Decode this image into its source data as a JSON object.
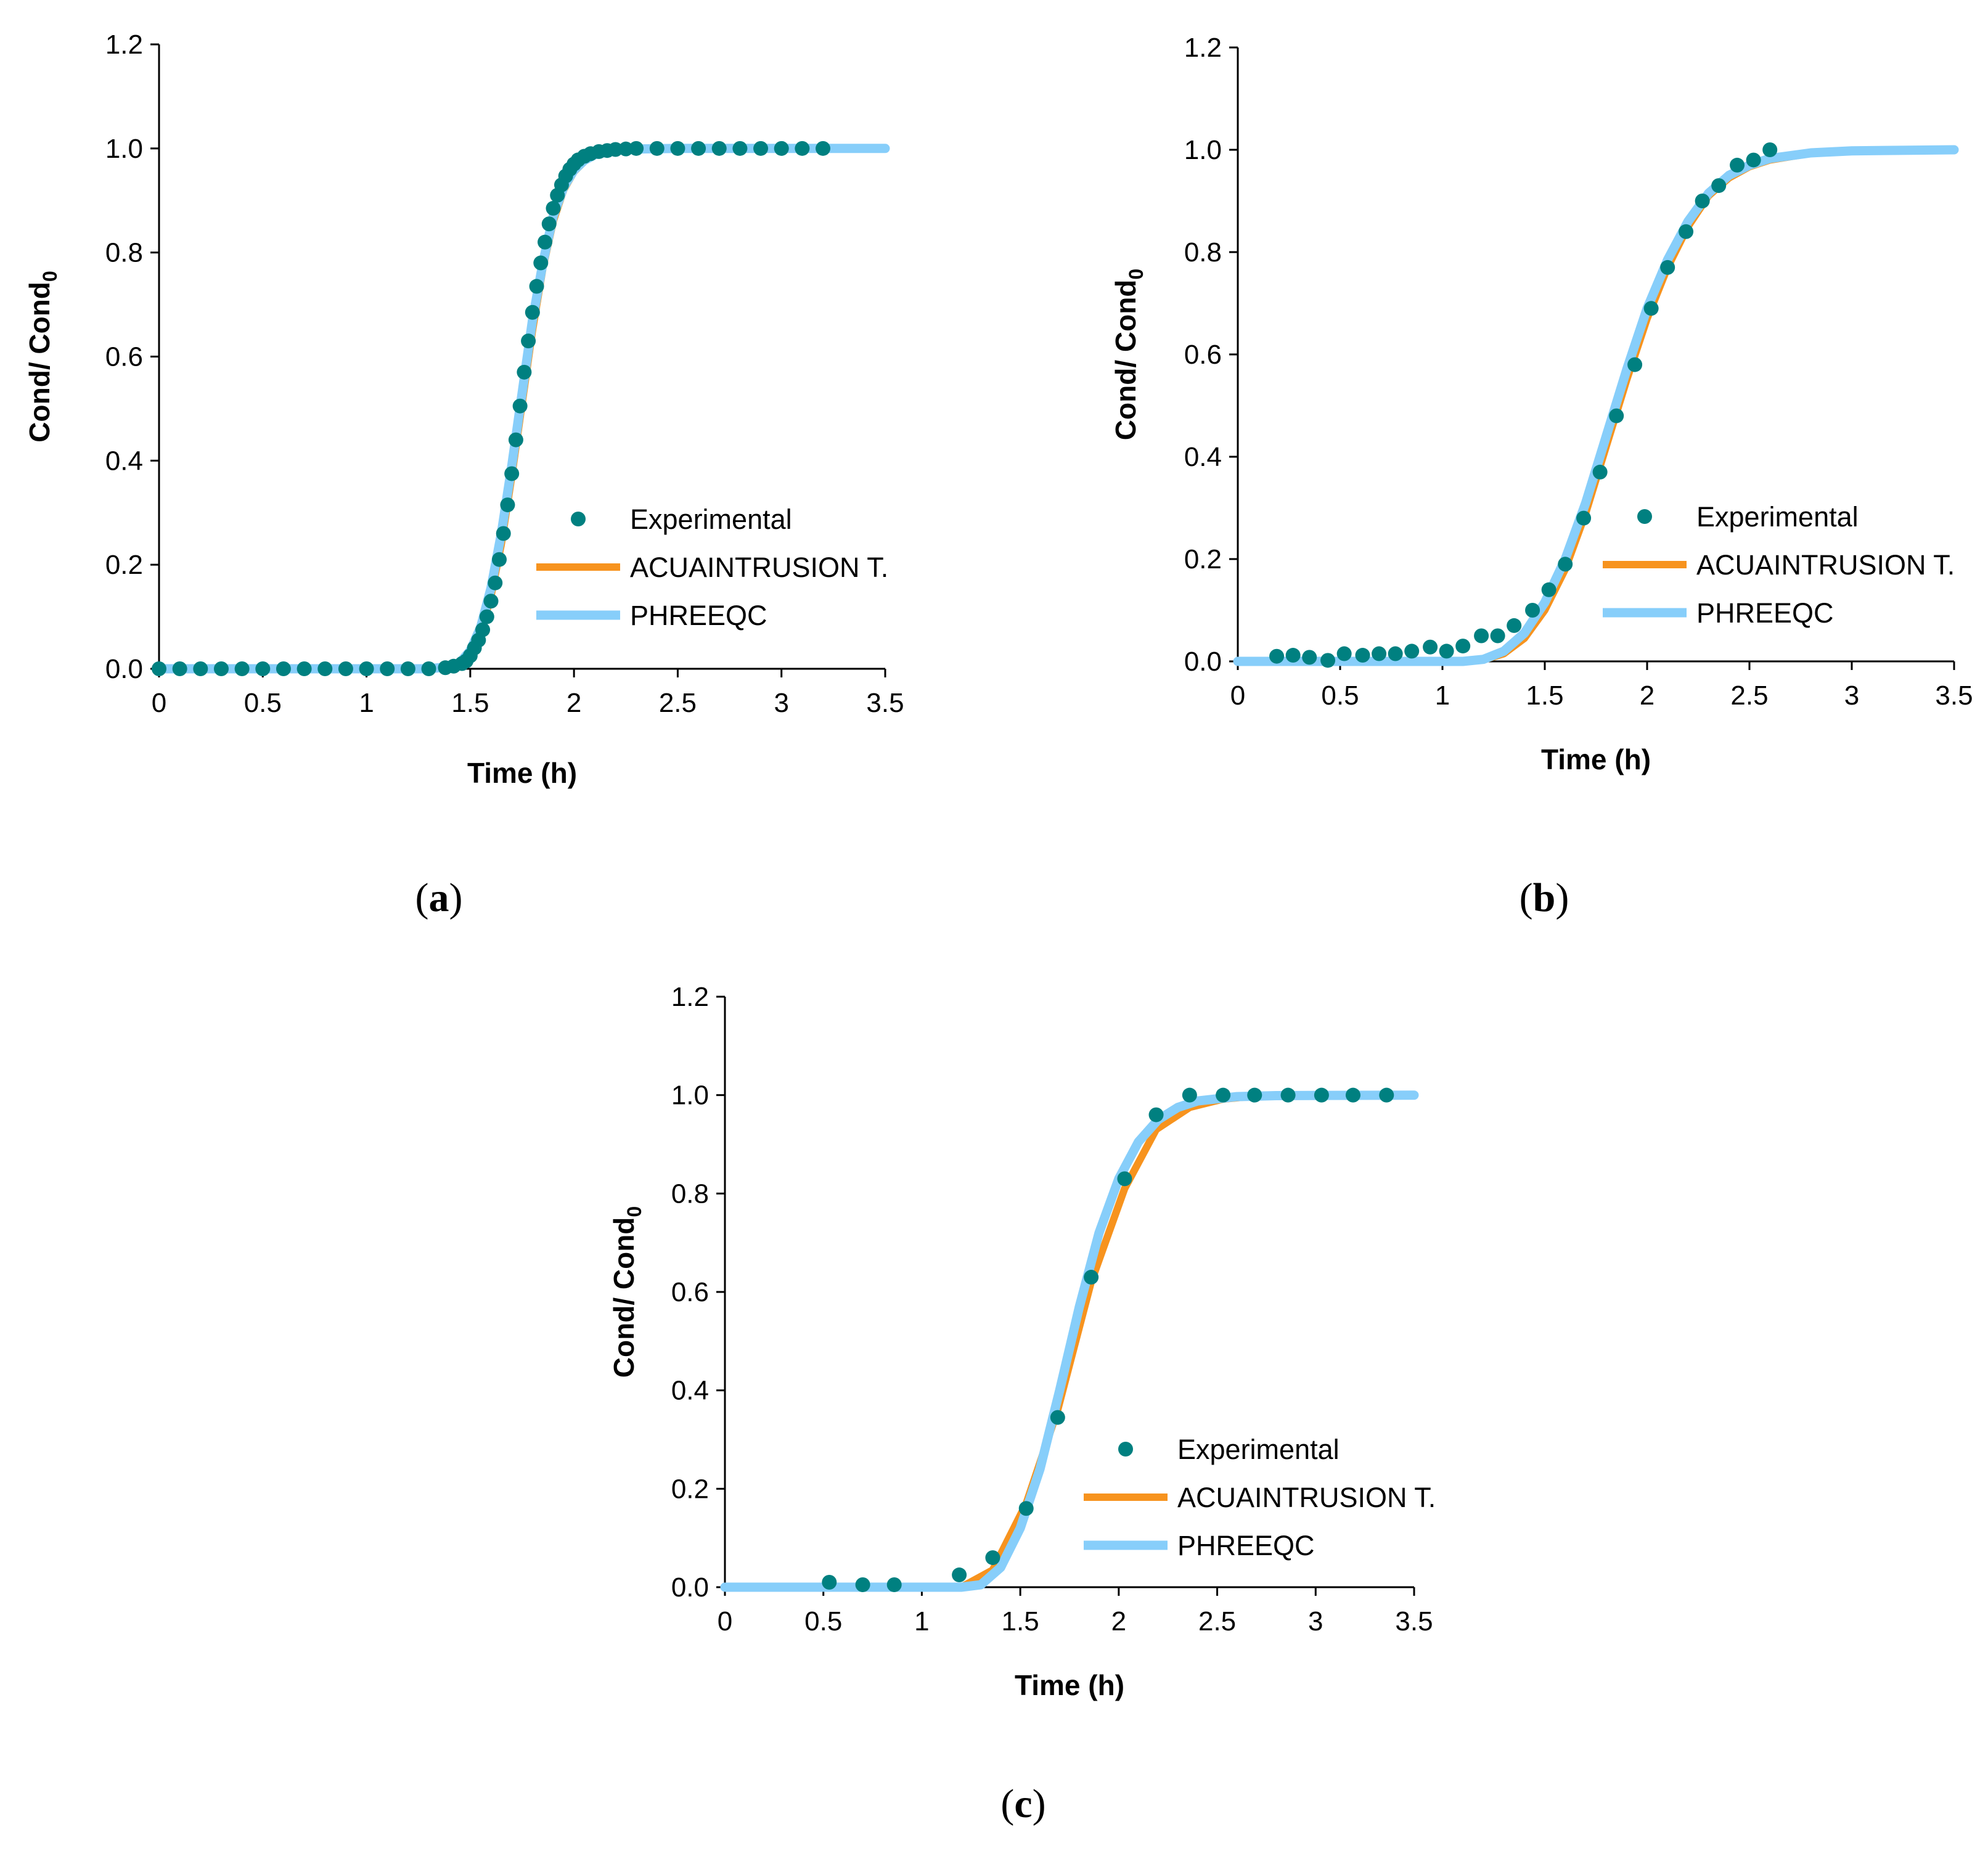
{
  "colors": {
    "experimental": "#008080",
    "acuaintrusion": "#F7931E",
    "phreeqc": "#87CEFA"
  },
  "chart_data": [
    {
      "type": "scatter",
      "panel_label": "a",
      "xlabel": "Time (h)",
      "ylabel": "Cond/ Cond",
      "ylabel_sub": "0",
      "xlim": [
        0,
        3.5
      ],
      "ylim": [
        0,
        1.2
      ],
      "xticks": [
        0,
        0.5,
        1,
        1.5,
        2,
        2.5,
        3,
        3.5
      ],
      "xtick_labels": [
        "0",
        "0.5",
        "1",
        "1.5",
        "2",
        "2.5",
        "3",
        "3.5"
      ],
      "yticks": [
        0,
        0.2,
        0.4,
        0.6,
        0.8,
        1.0,
        1.2
      ],
      "ytick_labels": [
        "0.0",
        "0.2",
        "0.4",
        "0.6",
        "0.8",
        "1.0",
        "1.2"
      ],
      "legend": [
        "Experimental",
        "ACUAINTRUSION T.",
        "PHREEQC"
      ],
      "series": [
        {
          "name": "Experimental",
          "style": "markers",
          "x": [
            0,
            0.1,
            0.2,
            0.3,
            0.4,
            0.5,
            0.6,
            0.7,
            0.8,
            0.9,
            1.0,
            1.1,
            1.2,
            1.3,
            1.38,
            1.42,
            1.46,
            1.48,
            1.5,
            1.52,
            1.54,
            1.56,
            1.58,
            1.6,
            1.62,
            1.64,
            1.66,
            1.68,
            1.7,
            1.72,
            1.74,
            1.76,
            1.78,
            1.8,
            1.82,
            1.84,
            1.86,
            1.88,
            1.9,
            1.92,
            1.94,
            1.96,
            1.98,
            2.0,
            2.02,
            2.05,
            2.08,
            2.12,
            2.16,
            2.2,
            2.25,
            2.3,
            2.4,
            2.5,
            2.6,
            2.7,
            2.8,
            2.9,
            3.0,
            3.1,
            3.2
          ],
          "y": [
            0,
            0,
            0,
            0,
            0,
            0,
            0,
            0,
            0,
            0,
            0,
            0,
            0,
            0,
            0.002,
            0.005,
            0.01,
            0.015,
            0.025,
            0.04,
            0.055,
            0.075,
            0.1,
            0.13,
            0.165,
            0.21,
            0.26,
            0.315,
            0.375,
            0.44,
            0.505,
            0.57,
            0.63,
            0.685,
            0.735,
            0.78,
            0.82,
            0.855,
            0.885,
            0.91,
            0.93,
            0.947,
            0.96,
            0.97,
            0.978,
            0.985,
            0.99,
            0.994,
            0.996,
            0.998,
            0.999,
            1.0,
            1.0,
            1.0,
            1.0,
            1.0,
            1.0,
            1.0,
            1.0,
            1.0,
            1.0
          ]
        },
        {
          "name": "ACUAINTRUSION T.",
          "style": "line",
          "x": [
            0,
            1.3,
            1.4,
            1.45,
            1.5,
            1.55,
            1.6,
            1.65,
            1.7,
            1.75,
            1.8,
            1.85,
            1.9,
            1.95,
            2.0,
            2.05,
            2.1,
            2.2,
            2.3,
            2.5,
            3.5
          ],
          "y": [
            0,
            0,
            0.003,
            0.01,
            0.03,
            0.07,
            0.14,
            0.24,
            0.37,
            0.51,
            0.65,
            0.77,
            0.86,
            0.92,
            0.955,
            0.975,
            0.987,
            0.996,
            0.999,
            1.0,
            1.0
          ]
        },
        {
          "name": "PHREEQC",
          "style": "line",
          "x": [
            0,
            1.3,
            1.4,
            1.45,
            1.5,
            1.55,
            1.6,
            1.65,
            1.7,
            1.75,
            1.8,
            1.85,
            1.9,
            1.95,
            2.0,
            2.05,
            2.1,
            2.2,
            2.3,
            2.5,
            3.5
          ],
          "y": [
            0,
            0,
            0.004,
            0.012,
            0.035,
            0.08,
            0.155,
            0.26,
            0.39,
            0.53,
            0.67,
            0.78,
            0.87,
            0.925,
            0.958,
            0.977,
            0.988,
            0.996,
            0.999,
            1.0,
            1.0
          ]
        }
      ]
    },
    {
      "type": "scatter",
      "panel_label": "b",
      "xlabel": "Time (h)",
      "ylabel": "Cond/ Cond",
      "ylabel_sub": "0",
      "xlim": [
        0,
        3.5
      ],
      "ylim": [
        0,
        1.2
      ],
      "xticks": [
        0,
        0.5,
        1,
        1.5,
        2,
        2.5,
        3,
        3.5
      ],
      "xtick_labels": [
        "0",
        "0.5",
        "1",
        "1.5",
        "2",
        "2.5",
        "3",
        "3.5"
      ],
      "yticks": [
        0,
        0.2,
        0.4,
        0.6,
        0.8,
        1.0,
        1.2
      ],
      "ytick_labels": [
        "0.0",
        "0.2",
        "0.4",
        "0.6",
        "0.8",
        "1.0",
        "1.2"
      ],
      "legend": [
        "Experimental",
        "ACUAINTRUSION T.",
        "PHREEQC"
      ],
      "series": [
        {
          "name": "Experimental",
          "style": "markers",
          "x": [
            0.19,
            0.27,
            0.35,
            0.44,
            0.52,
            0.61,
            0.69,
            0.77,
            0.85,
            0.94,
            1.02,
            1.1,
            1.19,
            1.27,
            1.35,
            1.44,
            1.52,
            1.6,
            1.69,
            1.77,
            1.85,
            1.94,
            2.02,
            2.1,
            2.19,
            2.27,
            2.35,
            2.44,
            2.52,
            2.6
          ],
          "y": [
            0.01,
            0.012,
            0.008,
            0.002,
            0.015,
            0.012,
            0.015,
            0.015,
            0.02,
            0.028,
            0.02,
            0.03,
            0.05,
            0.05,
            0.07,
            0.1,
            0.14,
            0.19,
            0.28,
            0.37,
            0.48,
            0.58,
            0.69,
            0.77,
            0.84,
            0.9,
            0.93,
            0.97,
            0.98,
            1.0
          ]
        },
        {
          "name": "ACUAINTRUSION T.",
          "style": "line",
          "x": [
            0,
            1.1,
            1.2,
            1.3,
            1.4,
            1.5,
            1.6,
            1.7,
            1.8,
            1.9,
            2.0,
            2.1,
            2.2,
            2.3,
            2.4,
            2.5,
            2.6,
            2.8,
            3.0,
            3.5
          ],
          "y": [
            0,
            0,
            0.003,
            0.015,
            0.045,
            0.1,
            0.18,
            0.29,
            0.42,
            0.55,
            0.67,
            0.77,
            0.85,
            0.91,
            0.945,
            0.967,
            0.98,
            0.993,
            0.998,
            1.0
          ]
        },
        {
          "name": "PHREEQC",
          "style": "line",
          "x": [
            0,
            1.1,
            1.2,
            1.3,
            1.4,
            1.5,
            1.6,
            1.7,
            1.8,
            1.9,
            2.0,
            2.1,
            2.2,
            2.3,
            2.4,
            2.5,
            2.6,
            2.8,
            3.0,
            3.5
          ],
          "y": [
            0,
            0,
            0.004,
            0.02,
            0.055,
            0.115,
            0.2,
            0.31,
            0.44,
            0.57,
            0.69,
            0.785,
            0.86,
            0.915,
            0.95,
            0.97,
            0.983,
            0.994,
            0.998,
            1.0
          ]
        }
      ]
    },
    {
      "type": "scatter",
      "panel_label": "c",
      "xlabel": "Time (h)",
      "ylabel": "Cond/ Cond",
      "ylabel_sub": "0",
      "xlim": [
        0,
        3.5
      ],
      "ylim": [
        0,
        1.2
      ],
      "xticks": [
        0,
        0.5,
        1,
        1.5,
        2,
        2.5,
        3,
        3.5
      ],
      "xtick_labels": [
        "0",
        "0.5",
        "1",
        "1.5",
        "2",
        "2.5",
        "3",
        "3.5"
      ],
      "yticks": [
        0,
        0.2,
        0.4,
        0.6,
        0.8,
        1.0,
        1.2
      ],
      "ytick_labels": [
        "0.0",
        "0.2",
        "0.4",
        "0.6",
        "0.8",
        "1.0",
        "1.2"
      ],
      "legend": [
        "Experimental",
        "ACUAINTRUSION T.",
        "PHREEQC"
      ],
      "series": [
        {
          "name": "Experimental",
          "style": "markers",
          "x": [
            0.53,
            0.7,
            0.86,
            1.19,
            1.36,
            1.53,
            1.69,
            1.86,
            2.03,
            2.19,
            2.36,
            2.53,
            2.69,
            2.86,
            3.03,
            3.19,
            3.36
          ],
          "y": [
            0.01,
            0.005,
            0.005,
            0.025,
            0.06,
            0.16,
            0.345,
            0.63,
            0.83,
            0.96,
            1.0,
            1.0,
            1.0,
            1.0,
            1.0,
            1.0,
            1.0
          ]
        },
        {
          "name": "ACUAINTRUSION T.",
          "style": "line",
          "x": [
            0,
            1.2,
            1.36,
            1.53,
            1.69,
            1.86,
            2.03,
            2.19,
            2.36,
            2.53,
            2.69,
            3.5
          ],
          "y": [
            0,
            0,
            0.035,
            0.17,
            0.36,
            0.62,
            0.81,
            0.93,
            0.975,
            0.992,
            0.998,
            1.0
          ]
        },
        {
          "name": "PHREEQC",
          "style": "line",
          "x": [
            0,
            1.2,
            1.3,
            1.4,
            1.5,
            1.6,
            1.7,
            1.8,
            1.9,
            2.0,
            2.1,
            2.2,
            2.3,
            2.4,
            2.6,
            2.8,
            3.5
          ],
          "y": [
            0,
            0,
            0.005,
            0.04,
            0.12,
            0.24,
            0.4,
            0.57,
            0.72,
            0.83,
            0.905,
            0.95,
            0.975,
            0.988,
            0.997,
            0.999,
            1.0
          ]
        }
      ]
    }
  ]
}
